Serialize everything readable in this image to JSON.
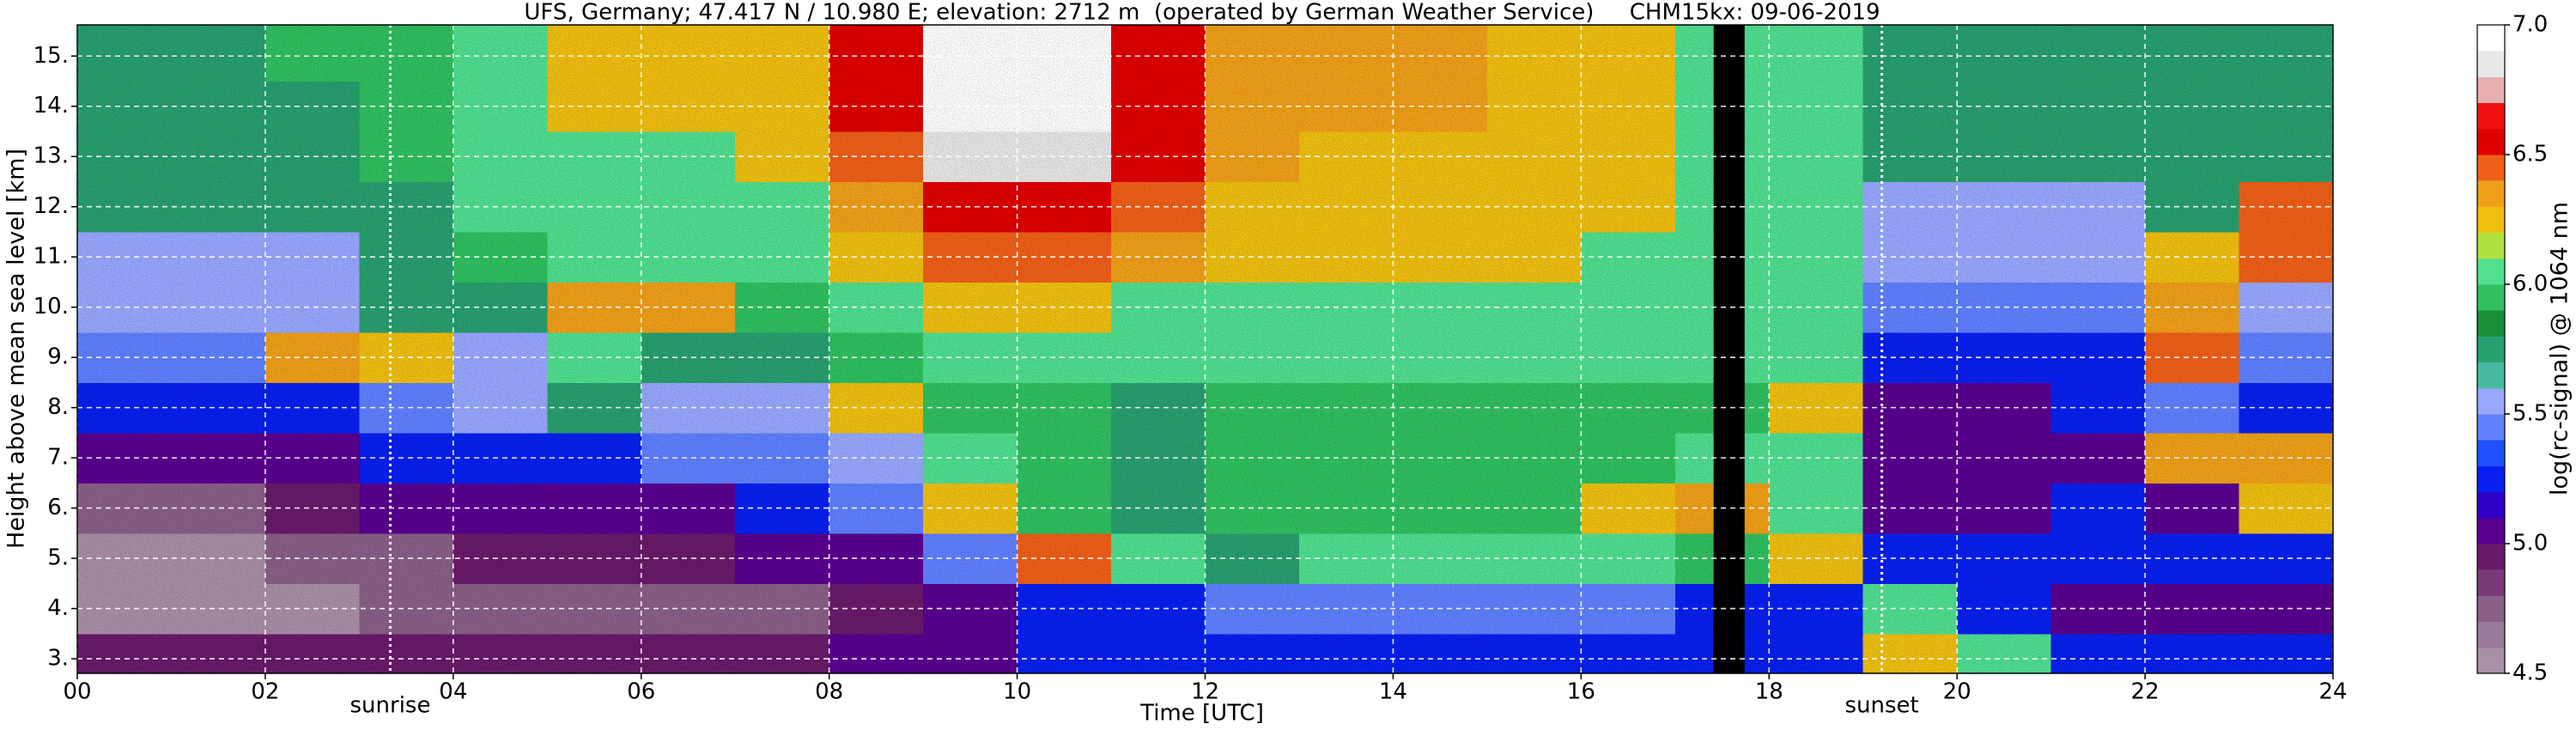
{
  "chart_data": {
    "type": "heatmap",
    "title": "UFS, Germany; 47.417 N / 10.980 E; elevation: 2712 m  (operated by German Weather Service)     CHM15kx: 09-06-2019",
    "x_label": "Time [UTC]",
    "y_label": "Height above mean sea level [km]",
    "colorbar_label": "log(rc-signal) @ 1064 nm",
    "xlim": [
      0,
      24
    ],
    "ylim": [
      2.71,
      15.62
    ],
    "xticks": [
      {
        "value": 0,
        "label": "00"
      },
      {
        "value": 2,
        "label": "02"
      },
      {
        "value": 4,
        "label": "04"
      },
      {
        "value": 6,
        "label": "06"
      },
      {
        "value": 8,
        "label": "08"
      },
      10,
      12,
      14,
      16,
      18,
      20,
      22,
      24
    ],
    "yticks": [
      {
        "value": 3,
        "label": "3."
      },
      {
        "value": 4,
        "label": "4."
      },
      {
        "value": 5,
        "label": "5."
      },
      {
        "value": 6,
        "label": "6."
      },
      {
        "value": 7,
        "label": "7."
      },
      {
        "value": 8,
        "label": "8."
      },
      {
        "value": 9,
        "label": "9."
      },
      {
        "value": 10,
        "label": "10."
      },
      {
        "value": 11,
        "label": "11."
      },
      {
        "value": 12,
        "label": "12."
      },
      {
        "value": 13,
        "label": "13."
      },
      {
        "value": 14,
        "label": "14."
      },
      {
        "value": 15,
        "label": "15."
      }
    ],
    "grid": true,
    "clim": [
      4.5,
      7.0
    ],
    "cticks": [
      4.5,
      {
        "value": 5,
        "label": "5.0"
      },
      5.5,
      {
        "value": 6,
        "label": "6.0"
      },
      6.5,
      {
        "value": 7,
        "label": "7.0"
      }
    ],
    "colors": [
      "#a890a8",
      "#9a7a9a",
      "#8a6088",
      "#7a3a78",
      "#6a1a6a",
      "#5a0090",
      "#3000c8",
      "#0820f0",
      "#2050ff",
      "#6080ff",
      "#98a8ff",
      "#48b8a0",
      "#28a070",
      "#18903a",
      "#30c060",
      "#50e090",
      "#b0e040",
      "#f0c010",
      "#f0a018",
      "#f06018",
      "#e00000",
      "#f01010",
      "#e8b0b0",
      "#e8e8e8",
      "#ffffff"
    ],
    "x_edges": [
      0,
      1,
      2,
      3,
      4,
      5,
      6,
      7,
      8,
      9,
      10,
      11,
      12,
      13,
      14,
      15,
      16,
      17,
      18,
      19,
      20,
      21,
      22,
      23,
      24
    ],
    "y_edges": [
      2.71,
      3.5,
      4.5,
      5.5,
      6.5,
      7.5,
      8.5,
      9.5,
      10.5,
      11.5,
      12.5,
      13.5,
      14.5,
      15.62
    ],
    "z": [
      [
        4.9,
        4.9,
        4.9,
        4.9,
        4.9,
        4.9,
        4.9,
        4.9,
        5.0,
        5.1,
        5.2,
        5.2,
        5.3,
        5.3,
        5.3,
        5.3,
        5.3,
        5.3,
        5.2,
        6.2,
        6.0,
        5.3,
        5.2,
        5.2
      ],
      [
        4.6,
        4.6,
        4.6,
        4.7,
        4.7,
        4.7,
        4.7,
        4.8,
        4.9,
        5.1,
        5.3,
        5.3,
        5.4,
        5.4,
        5.4,
        5.4,
        5.4,
        5.3,
        5.3,
        6.0,
        5.2,
        5.1,
        5.1,
        5.1
      ],
      [
        4.6,
        4.6,
        4.7,
        4.8,
        4.9,
        4.9,
        4.9,
        5.0,
        5.1,
        5.4,
        6.4,
        6.0,
        5.8,
        6.0,
        6.1,
        6.0,
        6.1,
        5.9,
        6.2,
        5.2,
        5.3,
        5.3,
        5.2,
        5.2
      ],
      [
        4.8,
        4.8,
        4.9,
        5.0,
        5.1,
        5.1,
        5.1,
        5.2,
        5.4,
        6.2,
        5.9,
        5.8,
        5.9,
        5.9,
        5.9,
        5.9,
        6.2,
        6.3,
        6.1,
        5.0,
        5.1,
        5.2,
        5.0,
        6.2
      ],
      [
        5.0,
        5.0,
        5.0,
        5.2,
        5.3,
        5.3,
        5.4,
        5.4,
        5.6,
        6.1,
        5.9,
        5.8,
        5.9,
        5.9,
        5.9,
        5.9,
        5.9,
        6.0,
        6.0,
        5.0,
        5.0,
        5.1,
        6.3,
        6.3
      ],
      [
        5.2,
        5.2,
        5.3,
        5.4,
        5.5,
        5.8,
        5.6,
        5.6,
        6.2,
        5.9,
        5.9,
        5.8,
        5.9,
        5.9,
        5.9,
        5.9,
        5.9,
        5.9,
        6.2,
        5.1,
        5.1,
        5.2,
        5.4,
        5.2
      ],
      [
        5.4,
        5.4,
        6.3,
        6.2,
        5.6,
        6.1,
        5.8,
        5.8,
        5.9,
        6.0,
        6.0,
        6.0,
        6.1,
        6.0,
        6.0,
        6.0,
        6.0,
        6.0,
        6.1,
        5.3,
        5.3,
        5.3,
        6.4,
        5.4
      ],
      [
        5.5,
        5.5,
        5.6,
        5.7,
        5.8,
        6.3,
        6.3,
        5.9,
        6.1,
        6.2,
        6.2,
        6.1,
        6.1,
        6.1,
        6.1,
        6.1,
        6.1,
        6.0,
        6.1,
        5.4,
        5.4,
        5.4,
        6.3,
        5.5
      ],
      [
        5.6,
        5.6,
        5.6,
        5.8,
        5.9,
        6.0,
        6.0,
        6.0,
        6.2,
        6.4,
        6.4,
        6.3,
        6.2,
        6.2,
        6.2,
        6.2,
        6.1,
        6.1,
        6.1,
        5.5,
        5.5,
        5.6,
        6.2,
        6.4
      ],
      [
        5.7,
        5.7,
        5.7,
        5.8,
        6.0,
        6.1,
        6.1,
        6.1,
        6.3,
        6.6,
        6.6,
        6.4,
        6.2,
        6.2,
        6.2,
        6.2,
        6.2,
        6.1,
        6.1,
        5.6,
        5.6,
        5.6,
        5.7,
        6.4
      ],
      [
        5.7,
        5.7,
        5.8,
        5.9,
        6.1,
        6.1,
        6.1,
        6.2,
        6.4,
        6.8,
        6.8,
        6.5,
        6.3,
        6.2,
        6.2,
        6.2,
        6.2,
        6.1,
        6.1,
        5.7,
        5.7,
        5.7,
        5.7,
        5.7
      ],
      [
        5.8,
        5.8,
        5.8,
        5.9,
        6.1,
        6.2,
        6.2,
        6.2,
        6.5,
        6.9,
        6.9,
        6.6,
        6.3,
        6.3,
        6.3,
        6.2,
        6.2,
        6.1,
        6.1,
        5.8,
        5.8,
        5.8,
        5.8,
        5.8
      ],
      [
        5.8,
        5.8,
        5.9,
        5.9,
        6.1,
        6.2,
        6.2,
        6.2,
        6.5,
        6.9,
        6.9,
        6.6,
        6.3,
        6.3,
        6.3,
        6.2,
        6.2,
        6.1,
        6.1,
        5.8,
        5.8,
        5.8,
        5.8,
        5.8
      ]
    ],
    "gaps": [
      [
        17.41,
        17.74
      ]
    ],
    "annotations": [
      {
        "text": "sunrise",
        "x": 3.33
      },
      {
        "text": "sunset",
        "x": 19.2
      }
    ]
  }
}
